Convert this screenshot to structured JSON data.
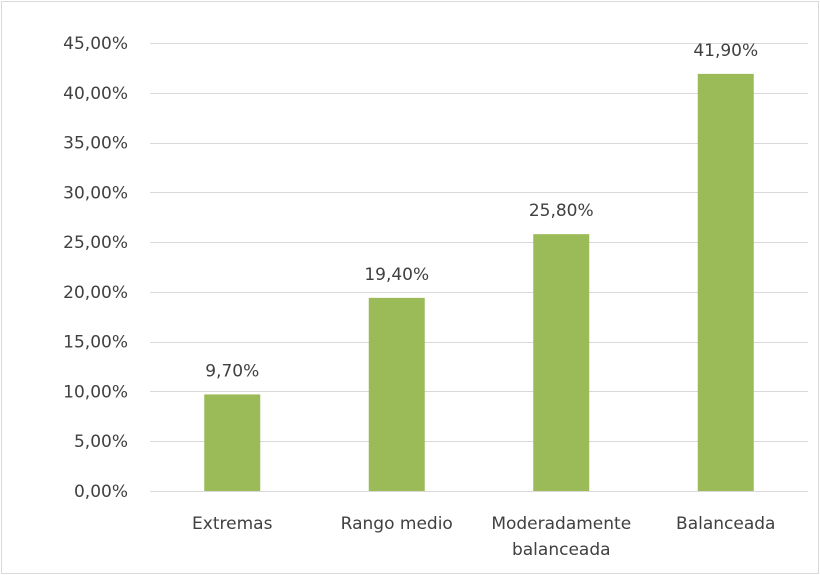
{
  "chart_data": {
    "type": "bar",
    "title": "",
    "xlabel": "",
    "ylabel": "",
    "categories": [
      [
        "Extremas"
      ],
      [
        "Rango medio"
      ],
      [
        "Moderadamente",
        "balanceada"
      ],
      [
        "Balanceada"
      ]
    ],
    "values": [
      9.7,
      19.4,
      25.8,
      41.9
    ],
    "data_labels": [
      "9,70%",
      "19,40%",
      "25,80%",
      "41,90%"
    ],
    "ylim": [
      0,
      45
    ],
    "y_ticks": [
      0,
      5,
      10,
      15,
      20,
      25,
      30,
      35,
      40,
      45
    ],
    "y_tick_labels": [
      "0,00%",
      "5,00%",
      "10,00%",
      "15,00%",
      "20,00%",
      "25,00%",
      "30,00%",
      "35,00%",
      "40,00%",
      "45,00%"
    ],
    "grid": true,
    "legend": "none",
    "colors": {
      "bar": "#9bbb59",
      "grid": "#d9d9d9",
      "text": "#404040"
    }
  }
}
